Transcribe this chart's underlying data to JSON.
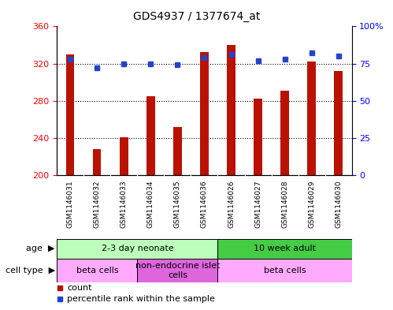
{
  "title": "GDS4937 / 1377674_at",
  "samples": [
    "GSM1146031",
    "GSM1146032",
    "GSM1146033",
    "GSM1146034",
    "GSM1146035",
    "GSM1146036",
    "GSM1146026",
    "GSM1146027",
    "GSM1146028",
    "GSM1146029",
    "GSM1146030"
  ],
  "counts": [
    330,
    228,
    241,
    285,
    252,
    332,
    340,
    282,
    291,
    322,
    312
  ],
  "percentiles": [
    78,
    72,
    75,
    75,
    74,
    79,
    81,
    77,
    78,
    82,
    80
  ],
  "ymin": 200,
  "ymax": 360,
  "yticks_left": [
    200,
    240,
    280,
    320,
    360
  ],
  "yticks_right": [
    0,
    25,
    50,
    75,
    100
  ],
  "bar_color": "#bb1100",
  "dot_color": "#2244cc",
  "bg_color": "#ffffff",
  "plot_bg": "#ffffff",
  "xticklabel_bg": "#cccccc",
  "age_groups": [
    {
      "label": "2-3 day neonate",
      "start": 0,
      "end": 6,
      "color": "#bbffbb"
    },
    {
      "label": "10 week adult",
      "start": 6,
      "end": 11,
      "color": "#44cc44"
    }
  ],
  "cell_groups": [
    {
      "label": "beta cells",
      "start": 0,
      "end": 3,
      "color": "#ffaaff"
    },
    {
      "label": "non-endocrine islet\ncells",
      "start": 3,
      "end": 6,
      "color": "#dd66dd"
    },
    {
      "label": "beta cells",
      "start": 6,
      "end": 11,
      "color": "#ffaaff"
    }
  ],
  "legend_items": [
    {
      "color": "#bb1100",
      "label": "count"
    },
    {
      "color": "#2244cc",
      "label": "percentile rank within the sample"
    }
  ],
  "grid_yticks": [
    240,
    280,
    320
  ]
}
